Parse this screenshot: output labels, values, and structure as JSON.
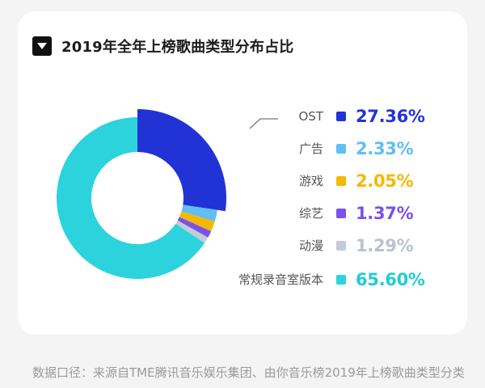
{
  "title": "2019年全年上榜歌曲类型分布占比",
  "footer_text": "数据口径：来源自TME腾讯音乐娱乐集团、由你音乐榜2019年上榜歌曲类型分类",
  "chart_data": {
    "type": "pie",
    "style": "donut",
    "title": "2019年全年上榜歌曲类型分布占比",
    "legend_position": "right",
    "slices": [
      {
        "label": "OST",
        "value": 27.36,
        "display": "27.36%",
        "color": "#2233d6",
        "value_color": "#2233d6"
      },
      {
        "label": "广告",
        "value": 2.33,
        "display": "2.33%",
        "color": "#5fbef2",
        "value_color": "#5fbef2"
      },
      {
        "label": "游戏",
        "value": 2.05,
        "display": "2.05%",
        "color": "#f5b800",
        "value_color": "#f5b800"
      },
      {
        "label": "综艺",
        "value": 1.37,
        "display": "1.37%",
        "color": "#7a52e6",
        "value_color": "#7a52e6"
      },
      {
        "label": "动漫",
        "value": 1.29,
        "display": "1.29%",
        "color": "#c2cbd8",
        "value_color": "#b9c3d0"
      },
      {
        "label": "常规录音室版本",
        "value": 65.6,
        "display": "65.60%",
        "color": "#2cd3dd",
        "value_color": "#22ccd6"
      }
    ]
  }
}
